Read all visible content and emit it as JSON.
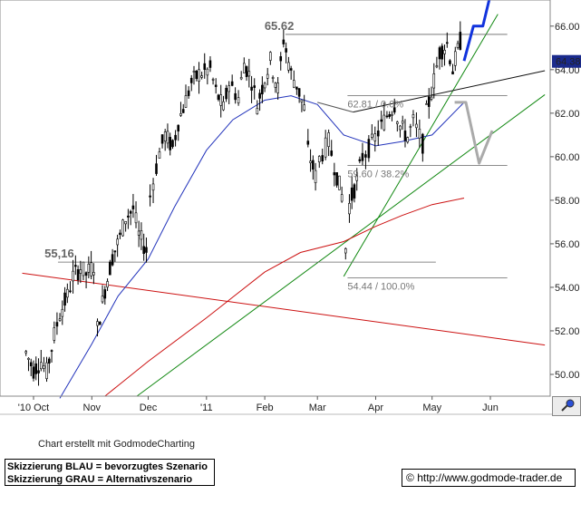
{
  "chart_data": {
    "type": "candlestick",
    "title": "",
    "x_tick_labels": [
      "'10 Oct",
      "Nov",
      "Dec",
      "'11",
      "Feb",
      "Mar",
      "Apr",
      "May",
      "Jun"
    ],
    "y_tick_labels": [
      "50.00",
      "52.00",
      "54.00",
      "56.00",
      "58.00",
      "60.00",
      "62.00",
      "64.00",
      "66.00"
    ],
    "ylim": [
      49.0,
      67.2
    ],
    "last_price": "64.38",
    "price_series": [
      [
        "2010-09-27",
        51.0
      ],
      [
        "2010-10-01",
        50.2
      ],
      [
        "2010-10-05",
        50.6
      ],
      [
        "2010-10-08",
        50.1
      ],
      [
        "2010-10-12",
        51.8
      ],
      [
        "2010-10-15",
        52.8
      ],
      [
        "2010-10-19",
        53.6
      ],
      [
        "2010-10-22",
        54.5
      ],
      [
        "2010-10-26",
        54.9
      ],
      [
        "2010-10-29",
        54.6
      ],
      [
        "2010-11-02",
        55.0
      ],
      [
        "2010-11-04",
        52.1
      ],
      [
        "2010-11-08",
        53.9
      ],
      [
        "2010-11-12",
        55.4
      ],
      [
        "2010-11-16",
        56.3
      ],
      [
        "2010-11-19",
        57.2
      ],
      [
        "2010-11-23",
        57.6
      ],
      [
        "2010-11-26",
        56.4
      ],
      [
        "2010-11-30",
        55.7
      ],
      [
        "2010-12-02",
        58.2
      ],
      [
        "2010-12-07",
        60.2
      ],
      [
        "2010-12-10",
        61.0
      ],
      [
        "2010-12-14",
        60.4
      ],
      [
        "2010-12-17",
        61.6
      ],
      [
        "2010-12-21",
        62.6
      ],
      [
        "2010-12-24",
        63.4
      ],
      [
        "2010-12-28",
        63.8
      ],
      [
        "2011-01-03",
        64.0
      ],
      [
        "2011-01-06",
        63.0
      ],
      [
        "2011-01-10",
        62.2
      ],
      [
        "2011-01-13",
        63.4
      ],
      [
        "2011-01-18",
        62.7
      ],
      [
        "2011-01-21",
        64.3
      ],
      [
        "2011-01-25",
        63.5
      ],
      [
        "2011-01-28",
        62.4
      ],
      [
        "2011-02-01",
        63.6
      ],
      [
        "2011-02-04",
        64.4
      ],
      [
        "2011-02-08",
        63.1
      ],
      [
        "2011-02-11",
        65.4
      ],
      [
        "2011-02-15",
        63.8
      ],
      [
        "2011-02-18",
        63.3
      ],
      [
        "2011-02-22",
        62.2
      ],
      [
        "2011-02-24",
        60.3
      ],
      [
        "2011-02-28",
        59.1
      ],
      [
        "2011-03-02",
        59.9
      ],
      [
        "2011-03-07",
        60.7
      ],
      [
        "2011-03-10",
        59.6
      ],
      [
        "2011-03-14",
        58.2
      ],
      [
        "2011-03-16",
        55.8
      ],
      [
        "2011-03-18",
        57.8
      ],
      [
        "2011-03-22",
        58.9
      ],
      [
        "2011-03-25",
        60.0
      ],
      [
        "2011-03-30",
        60.6
      ],
      [
        "2011-04-04",
        61.4
      ],
      [
        "2011-04-07",
        61.9
      ],
      [
        "2011-04-11",
        62.4
      ],
      [
        "2011-04-14",
        61.4
      ],
      [
        "2011-04-18",
        60.9
      ],
      [
        "2011-04-21",
        61.6
      ],
      [
        "2011-04-26",
        60.6
      ],
      [
        "2011-04-28",
        62.0
      ],
      [
        "2011-05-02",
        63.5
      ],
      [
        "2011-05-05",
        64.8
      ],
      [
        "2011-05-09",
        65.2
      ],
      [
        "2011-05-12",
        64.0
      ],
      [
        "2011-05-16",
        65.3
      ],
      [
        "2011-05-18",
        64.4
      ]
    ],
    "series": [
      {
        "color": "#2233bb",
        "points": [
          [
            "2010-10-15",
            48.9
          ],
          [
            "2010-11-01",
            51.4
          ],
          [
            "2010-11-15",
            53.6
          ],
          [
            "2010-12-01",
            55.3
          ],
          [
            "2010-12-15",
            57.7
          ],
          [
            "2011-01-01",
            60.3
          ],
          [
            "2011-01-15",
            61.7
          ],
          [
            "2011-02-01",
            62.6
          ],
          [
            "2011-02-15",
            62.8
          ],
          [
            "2011-03-01",
            62.4
          ],
          [
            "2011-03-15",
            61.0
          ],
          [
            "2011-04-01",
            60.5
          ],
          [
            "2011-04-15",
            60.7
          ],
          [
            "2011-05-01",
            61.0
          ],
          [
            "2011-05-18",
            62.5
          ]
        ]
      },
      {
        "color": "#cc1111",
        "points": [
          [
            "2010-11-08",
            49.0
          ],
          [
            "2010-12-01",
            50.6
          ],
          [
            "2011-01-01",
            52.6
          ],
          [
            "2011-02-01",
            54.7
          ],
          [
            "2011-02-20",
            55.6
          ],
          [
            "2011-03-15",
            56.1
          ],
          [
            "2011-04-01",
            56.8
          ],
          [
            "2011-04-15",
            57.3
          ],
          [
            "2011-05-01",
            57.8
          ],
          [
            "2011-05-18",
            58.1
          ]
        ]
      }
    ],
    "trend_lines": [
      {
        "color": "#cc1111",
        "from": [
          "2010-09-25",
          54.65
        ],
        "to": [
          "2011-06-30",
          51.35
        ]
      },
      {
        "color": "#118811",
        "from": [
          "2010-11-25",
          49.0
        ],
        "to": [
          "2011-06-30",
          62.85
        ]
      },
      {
        "color": "#118811",
        "from": [
          "2011-03-15",
          54.5
        ],
        "to": [
          "2011-06-05",
          66.55
        ]
      },
      {
        "color": "#111111",
        "from": [
          "2011-03-20",
          62.05
        ],
        "to": [
          "2011-06-30",
          63.95
        ]
      },
      {
        "color": "#555555",
        "from": [
          "2011-03-01",
          62.5
        ],
        "to": [
          "2011-03-20",
          62.05
        ]
      }
    ],
    "horizontal_levels": [
      {
        "value": 55.16,
        "from": "2010-10-14",
        "to": "2011-05-03",
        "label": "55,16",
        "label_date": "2010-10-03"
      },
      {
        "value": 65.62,
        "from": "2011-02-12",
        "to": "2011-06-10",
        "label": "65.62",
        "label_date": "2011-01-28"
      },
      {
        "value": 62.81,
        "from": "2011-03-17",
        "to": "2011-06-10",
        "label": "62.81 / 0.0%",
        "label_date": "2011-03-17"
      },
      {
        "value": 59.6,
        "from": "2011-03-17",
        "to": "2011-06-10",
        "label": "59.60 / 38.2%",
        "label_date": "2011-03-17"
      },
      {
        "value": 54.44,
        "from": "2011-03-17",
        "to": "2011-06-10",
        "label": "54.44 / 100.0%",
        "label_date": "2011-03-17"
      }
    ],
    "scenarios": [
      {
        "name": "Skizzierung BLAU = bevorzugtes Szenario",
        "color": "#1133dd",
        "points": [
          [
            "2011-05-18",
            64.4
          ],
          [
            "2011-05-23",
            66.0
          ],
          [
            "2011-05-28",
            66.0
          ],
          [
            "2011-06-04",
            68.5
          ]
        ]
      },
      {
        "name": "Skizzierung GRAU = Alternativszenario",
        "color": "#aaaaaa",
        "points": [
          [
            "2011-05-13",
            62.5
          ],
          [
            "2011-05-19",
            62.5
          ],
          [
            "2011-05-26",
            59.7
          ],
          [
            "2011-06-02",
            61.2
          ]
        ]
      }
    ]
  },
  "footer": {
    "credit": "Chart erstellt mit GodmodeCharting",
    "legend_blue": "Skizzierung BLAU = bevorzugtes Szenario",
    "legend_gray": "Skizzierung GRAU = Alternativszenario",
    "copyright_symbol": "©",
    "url": "http://www.godmode-trader.de"
  },
  "icons": {
    "zoom": "magnifier-zoom-icon"
  }
}
